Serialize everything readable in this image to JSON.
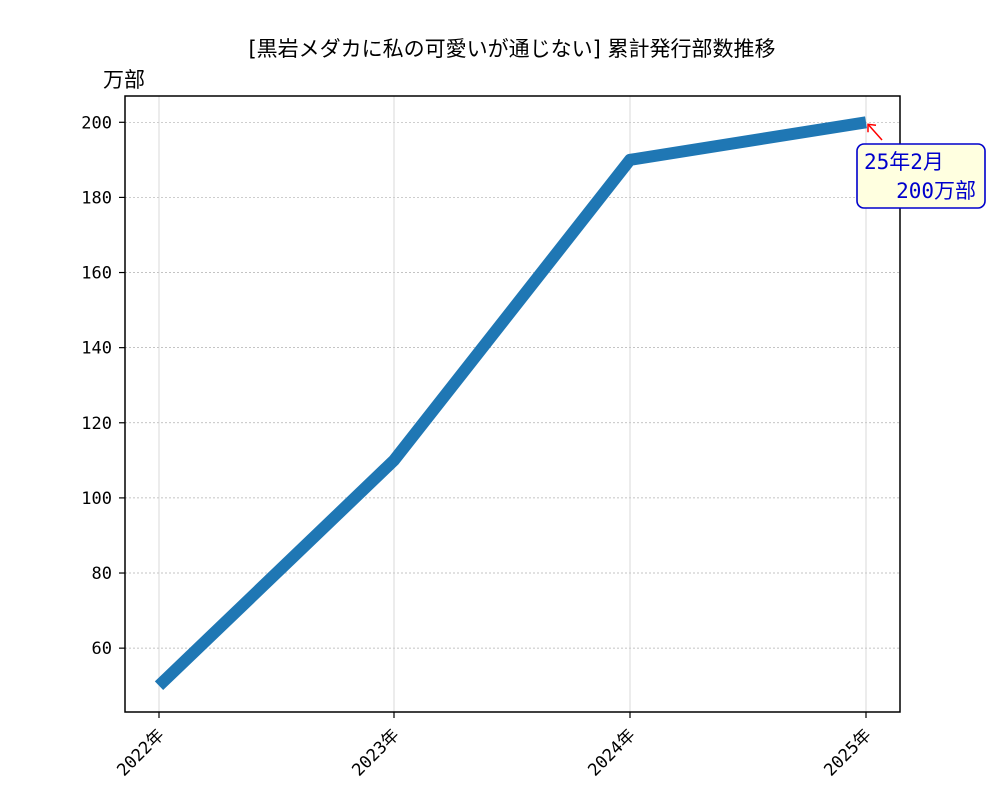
{
  "chart_data": {
    "type": "line",
    "title": "[黒岩メダカに私の可愛いが通じない] 累計発行部数推移",
    "ylabel": "万部",
    "xlabel": "",
    "categories": [
      "2022年",
      "2023年",
      "2024年",
      "2025年"
    ],
    "series": [
      {
        "values": [
          50,
          110,
          190,
          200
        ],
        "color": "#1f77b4"
      }
    ],
    "ylim": [
      43,
      207
    ],
    "yticks": [
      60,
      80,
      100,
      120,
      140,
      160,
      180,
      200
    ],
    "grid": true,
    "annotation": {
      "line1": "25年2月",
      "line2": "200万部",
      "target_category_index": 3,
      "target_value": 200,
      "arrow_color": "#ff0000",
      "text_color": "#0000cc",
      "box_color": "#ffffe0"
    }
  }
}
